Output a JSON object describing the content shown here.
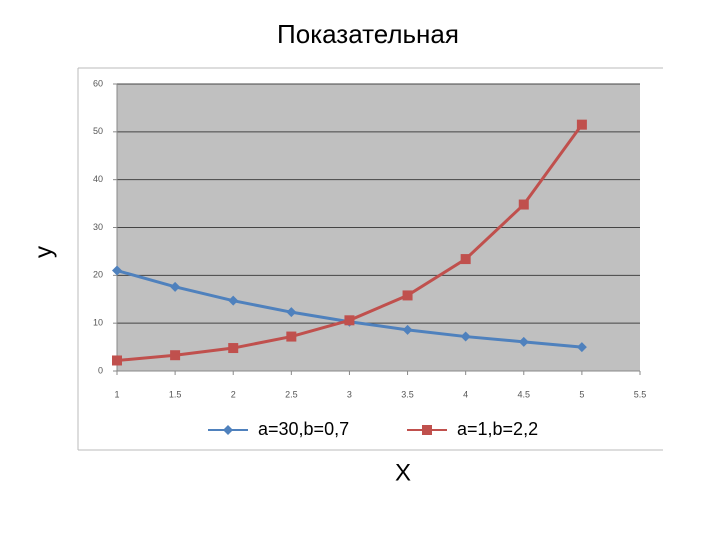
{
  "chart_data": {
    "type": "line",
    "title": "Показательная",
    "x_label": "X",
    "y_label": "y",
    "x": [
      1,
      1.5,
      2,
      2.5,
      3,
      3.5,
      4,
      4.5,
      5
    ],
    "series": [
      {
        "name": "a=30,b=0,7",
        "color": "#4f81bd",
        "marker": "diamond",
        "values": [
          21,
          17.6,
          14.7,
          12.3,
          10.3,
          8.6,
          7.2,
          6.1,
          5
        ]
      },
      {
        "name": "a=1,b=2,2",
        "color": "#c0504d",
        "marker": "square",
        "values": [
          2.2,
          3.3,
          4.8,
          7.2,
          10.6,
          15.8,
          23.4,
          34.8,
          51.5
        ]
      }
    ],
    "xlim": [
      1,
      5.5
    ],
    "xticks": [
      1,
      1.5,
      2,
      2.5,
      3,
      3.5,
      4,
      4.5,
      5,
      5.5
    ],
    "ylim": [
      0,
      60
    ],
    "yticks": [
      0,
      10,
      20,
      30,
      40,
      50,
      60
    ],
    "grid": true,
    "legend": "bottom"
  }
}
